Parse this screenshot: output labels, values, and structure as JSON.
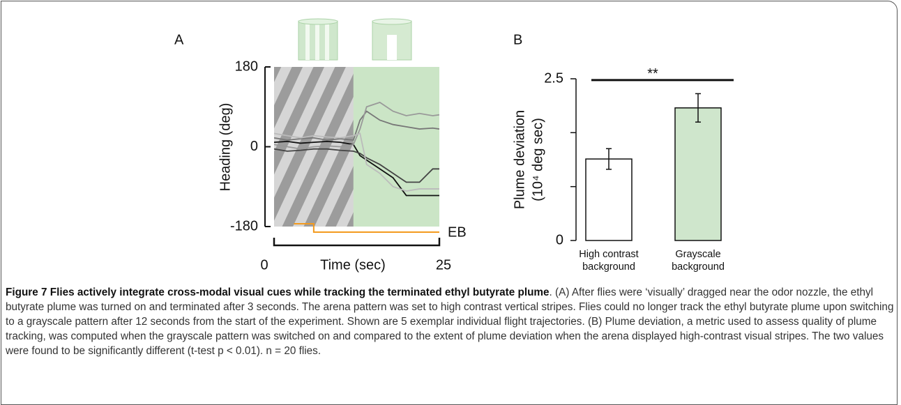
{
  "chart_data": [
    {
      "type": "line",
      "label": "A",
      "ylabel": "Heading (deg)",
      "xlabel": "Time (sec)",
      "xlim": [
        0,
        25
      ],
      "xticks": [
        0,
        25
      ],
      "ylim": [
        -180,
        180
      ],
      "yticks": [
        -180,
        0,
        180
      ],
      "pattern_switch": 12,
      "stimulus": {
        "label": "EB",
        "on": 3,
        "off": 6,
        "color": "#f39a1e"
      },
      "x": [
        0,
        2,
        4,
        6,
        8,
        10,
        12,
        13,
        14,
        16,
        18,
        20,
        22,
        24,
        25
      ],
      "series": [
        {
          "color": "#111111",
          "values": [
            10,
            12,
            8,
            10,
            12,
            10,
            5,
            -20,
            -30,
            -50,
            -70,
            -110,
            -110,
            -110,
            -110
          ]
        },
        {
          "color": "#444444",
          "values": [
            -5,
            -10,
            -8,
            -5,
            -5,
            -8,
            -10,
            -15,
            -25,
            -40,
            -60,
            -80,
            -80,
            -50,
            -50
          ]
        },
        {
          "color": "#777777",
          "values": [
            20,
            15,
            18,
            20,
            15,
            18,
            15,
            60,
            80,
            60,
            50,
            45,
            40,
            42,
            40
          ]
        },
        {
          "color": "#999999",
          "values": [
            5,
            0,
            -5,
            0,
            2,
            0,
            5,
            40,
            90,
            100,
            80,
            70,
            75,
            70,
            72
          ]
        },
        {
          "color": "#bbbbbb",
          "values": [
            30,
            25,
            20,
            25,
            22,
            20,
            25,
            30,
            -40,
            -60,
            -90,
            -100,
            -95,
            -95,
            -95
          ]
        }
      ]
    },
    {
      "type": "bar",
      "label": "B",
      "ylabel": "Plume deviation",
      "ylabel2": "(10⁴ deg sec)",
      "categories": [
        "High contrast\nbackground",
        "Grayscale\nbackground"
      ],
      "values": [
        1.26,
        2.05
      ],
      "errors": [
        0.16,
        0.22
      ],
      "colors": [
        "#ffffff",
        "#cfe6cc"
      ],
      "ylim": [
        0,
        2.5
      ],
      "yticks": [
        0,
        2.5
      ],
      "minor_yticks": [
        0.833,
        1.667
      ],
      "annotation": "**",
      "annotation_level": 2.48
    }
  ],
  "caption": {
    "title": "Figure 7 Flies actively integrate cross-modal visual cues while tracking the terminated ethyl butyrate plume",
    "text": ". (A) After flies were ‘visually’ dragged near the odor nozzle, the ethyl butyrate plume was turned on and terminated after 3 seconds. The arena pattern was set to high contrast vertical stripes. Flies could no longer track the ethyl butyrate plume upon switching to a grayscale pattern after 12 seconds from the start of the experiment. Shown are 5 exemplar individual flight trajectories. (B) Plume deviation, a metric used to assess quality of plume tracking, was computed when the grayscale pattern was switched on and compared to the extent of plume deviation when the arena displayed high-contrast visual stripes. The two values were found to be significantly different (t-test p < 0.01). n = 20 flies."
  }
}
